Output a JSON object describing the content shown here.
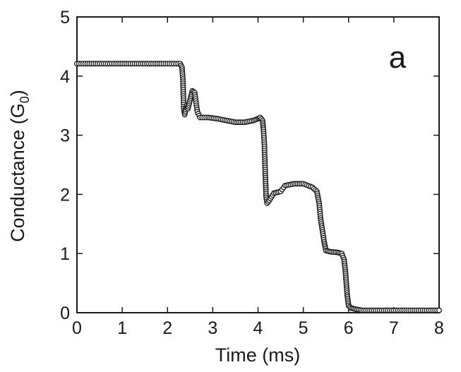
{
  "chart_data": {
    "type": "scatter",
    "panel_label": "a",
    "xlabel": "Time (ms)",
    "ylabel": "Conductance (G",
    "ylabel_subscript": "0",
    "ylabel_suffix": ")",
    "xlim": [
      0,
      8
    ],
    "ylim": [
      0,
      5
    ],
    "x_ticks": [
      0,
      1,
      2,
      3,
      4,
      5,
      6,
      7,
      8
    ],
    "y_ticks": [
      0,
      1,
      2,
      3,
      4,
      5
    ],
    "x_tick_labels": [
      "0",
      "1",
      "2",
      "3",
      "4",
      "5",
      "6",
      "7",
      "8"
    ],
    "y_tick_labels": [
      "0",
      "1",
      "2",
      "3",
      "4",
      "5"
    ],
    "grid": false,
    "marker": "open-circle",
    "marker_color": "#1a1a1a",
    "trace": [
      [
        0.0,
        4.21
      ],
      [
        0.5,
        4.21
      ],
      [
        1.0,
        4.21
      ],
      [
        1.5,
        4.21
      ],
      [
        2.0,
        4.21
      ],
      [
        2.28,
        4.21
      ],
      [
        2.32,
        4.15
      ],
      [
        2.34,
        3.95
      ],
      [
        2.35,
        3.7
      ],
      [
        2.36,
        3.45
      ],
      [
        2.38,
        3.35
      ],
      [
        2.42,
        3.5
      ],
      [
        2.45,
        3.45
      ],
      [
        2.5,
        3.6
      ],
      [
        2.55,
        3.75
      ],
      [
        2.6,
        3.72
      ],
      [
        2.66,
        3.4
      ],
      [
        2.72,
        3.3
      ],
      [
        2.9,
        3.3
      ],
      [
        3.1,
        3.28
      ],
      [
        3.3,
        3.25
      ],
      [
        3.5,
        3.22
      ],
      [
        3.7,
        3.22
      ],
      [
        3.9,
        3.25
      ],
      [
        4.0,
        3.28
      ],
      [
        4.05,
        3.3
      ],
      [
        4.1,
        3.25
      ],
      [
        4.12,
        3.1
      ],
      [
        4.14,
        2.85
      ],
      [
        4.15,
        2.6
      ],
      [
        4.16,
        2.35
      ],
      [
        4.17,
        2.15
      ],
      [
        4.18,
        1.95
      ],
      [
        4.2,
        1.85
      ],
      [
        4.25,
        1.9
      ],
      [
        4.35,
        2.02
      ],
      [
        4.5,
        2.05
      ],
      [
        4.6,
        2.15
      ],
      [
        4.8,
        2.18
      ],
      [
        5.0,
        2.18
      ],
      [
        5.2,
        2.12
      ],
      [
        5.3,
        2.05
      ],
      [
        5.35,
        1.85
      ],
      [
        5.38,
        1.6
      ],
      [
        5.42,
        1.4
      ],
      [
        5.46,
        1.2
      ],
      [
        5.5,
        1.05
      ],
      [
        5.6,
        1.03
      ],
      [
        5.75,
        1.02
      ],
      [
        5.85,
        1.0
      ],
      [
        5.9,
        0.9
      ],
      [
        5.93,
        0.7
      ],
      [
        5.95,
        0.5
      ],
      [
        5.97,
        0.3
      ],
      [
        6.0,
        0.12
      ],
      [
        6.05,
        0.08
      ],
      [
        6.15,
        0.06
      ],
      [
        6.3,
        0.04
      ],
      [
        6.6,
        0.04
      ],
      [
        7.0,
        0.04
      ],
      [
        7.5,
        0.04
      ],
      [
        8.0,
        0.04
      ]
    ]
  }
}
